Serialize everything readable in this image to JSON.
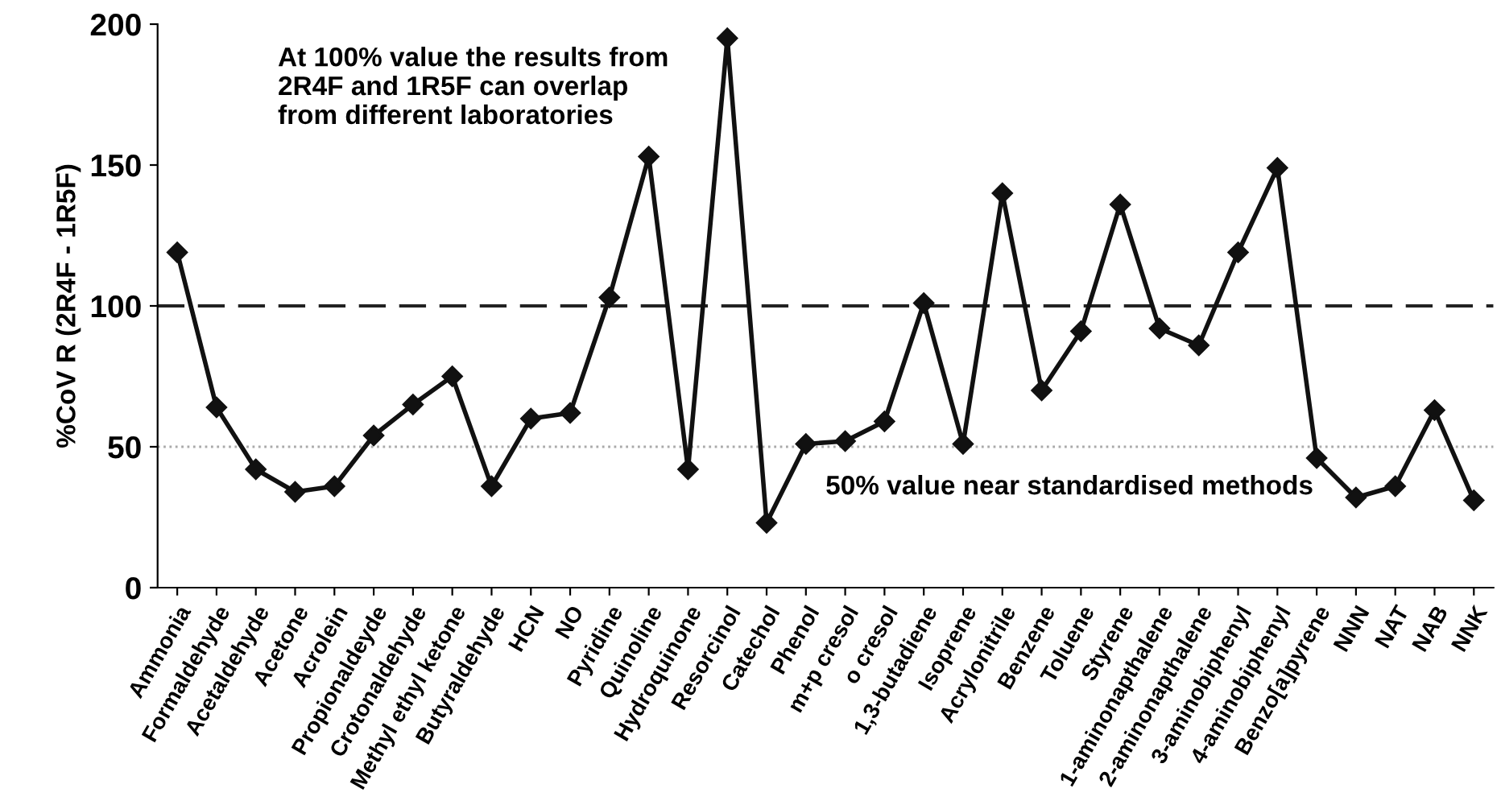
{
  "chart_data": {
    "type": "line",
    "ylabel": "%CoV R (2R4F - 1R5F)",
    "categories": [
      "Ammonia",
      "Formaldehyde",
      "Acetaldehyde",
      "Acetone",
      "Acrolein",
      "Propionaldeyde",
      "Crotonaldehyde",
      "Methyl ethyl ketone",
      "Butyraldehyde",
      "HCN",
      "NO",
      "Pyridine",
      "Quinoline",
      "Hydroquinone",
      "Resorcinol",
      "Catechol",
      "Phenol",
      "m+p cresol",
      "o cresol",
      "1,3-butadiene",
      "Isoprene",
      "Acrylonitrile",
      "Benzene",
      "Toluene",
      "Styrene",
      "1-aminonapthalene",
      "2-aminonapthalene",
      "3-aminobiphenyl",
      "4-aminobiphenyl",
      "Benzo[a]pyrene",
      "NNN",
      "NAT",
      "NAB",
      "NNK"
    ],
    "series": [
      {
        "color": "#111111",
        "values": [
          119,
          64,
          42,
          34,
          36,
          54,
          65,
          75,
          36,
          60,
          62,
          103,
          153,
          42,
          195,
          23,
          51,
          52,
          59,
          101,
          51,
          140,
          70,
          91,
          136,
          92,
          86,
          119,
          149,
          46,
          32,
          36,
          63,
          31
        ]
      }
    ],
    "marker": "diamond",
    "line_style": "solid",
    "ylim": [
      0,
      200
    ],
    "yticks": [
      0,
      50,
      100,
      150,
      200
    ],
    "grid": false,
    "legend": false,
    "ref_lines": [
      {
        "axis": "y",
        "value": 100,
        "color": "#222222",
        "line_style": "dashed"
      },
      {
        "axis": "y",
        "value": 50,
        "color": "#aaaaaa",
        "line_style": "dotted"
      }
    ],
    "annotations": [
      "At 100% value the results from\n2R4F and 1R5F can overlap\nfrom different laboratories",
      "50% value near standardised methods"
    ]
  }
}
